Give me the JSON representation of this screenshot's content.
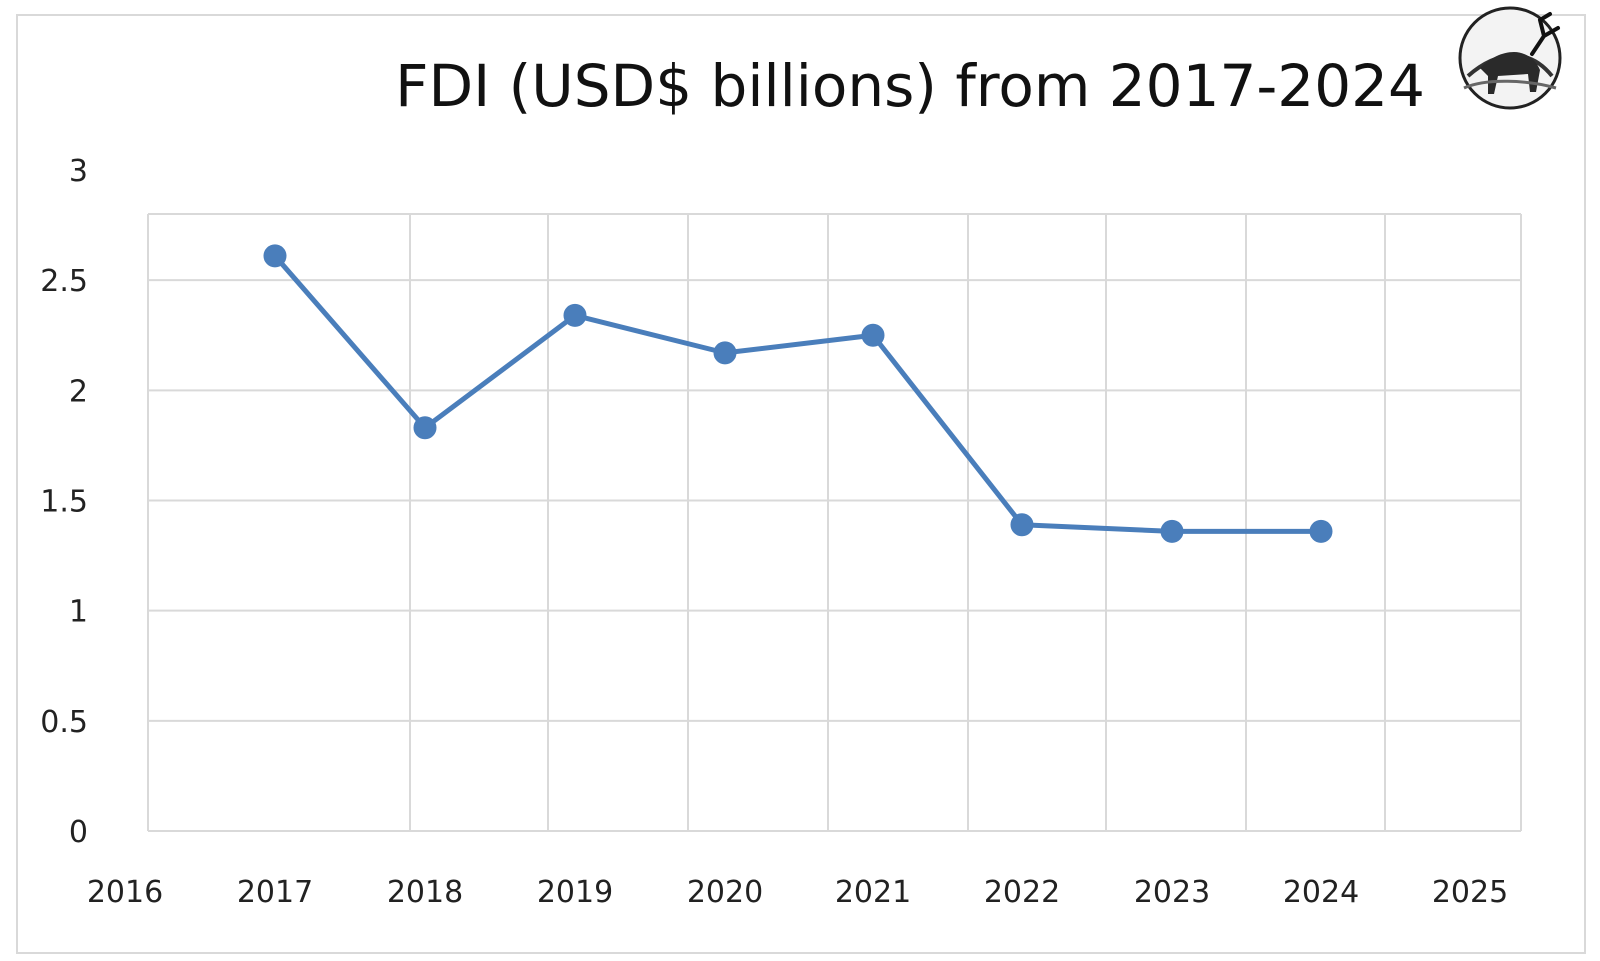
{
  "chart_data": {
    "type": "scatter",
    "title": "FDI (USD$ billions) from 2017-2024",
    "xlabel": "",
    "ylabel": "",
    "x": [
      2017,
      2018,
      2019,
      2020,
      2021,
      2022,
      2023,
      2024
    ],
    "series": [
      {
        "values": [
          2.61,
          1.83,
          2.34,
          2.17,
          2.25,
          1.39,
          1.36,
          1.36
        ],
        "color": "#4a7ebb"
      }
    ],
    "xlim": [
      2016,
      2025
    ],
    "ylim": [
      0,
      3
    ],
    "x_ticks": [
      "2016",
      "2017",
      "2018",
      "2019",
      "2020",
      "2021",
      "2022",
      "2023",
      "2024",
      "2025"
    ],
    "y_ticks": [
      "0",
      "0.5",
      "1",
      "1.5",
      "2",
      "2.5",
      "3"
    ],
    "grid": true,
    "markers": true,
    "connected": true,
    "legend": "none"
  },
  "logo": {
    "icon": "kudu-antelope-emblem-icon"
  }
}
